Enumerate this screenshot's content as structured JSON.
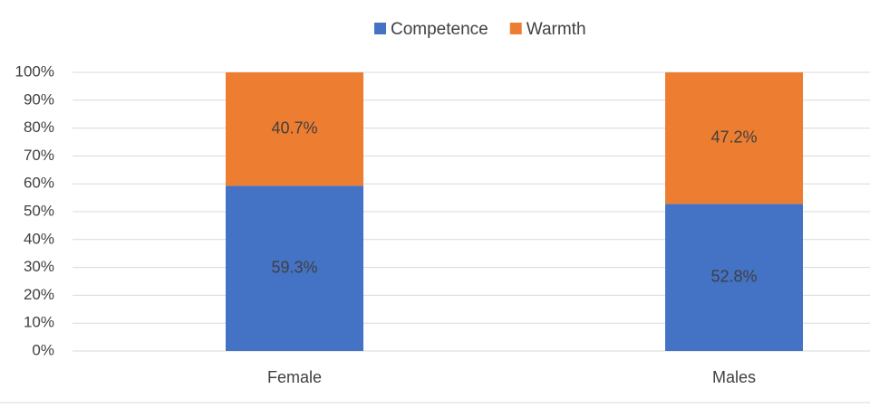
{
  "chart_data": {
    "type": "stacked_bar",
    "categories": [
      "Female",
      "Males"
    ],
    "series": [
      {
        "name": "Competence",
        "color": "#4472c4",
        "values": [
          59.3,
          52.8
        ],
        "value_labels": [
          "59.3%",
          "52.8%"
        ]
      },
      {
        "name": "Warmth",
        "color": "#ed7d31",
        "values": [
          40.7,
          47.2
        ],
        "value_labels": [
          "40.7%",
          "47.2%"
        ]
      }
    ],
    "ylim": [
      0,
      100
    ],
    "yticks": [
      {
        "value": 0,
        "label": "0%"
      },
      {
        "value": 10,
        "label": "10%"
      },
      {
        "value": 20,
        "label": "20%"
      },
      {
        "value": 30,
        "label": "30%"
      },
      {
        "value": 40,
        "label": "40%"
      },
      {
        "value": 50,
        "label": "50%"
      },
      {
        "value": 60,
        "label": "60%"
      },
      {
        "value": 70,
        "label": "70%"
      },
      {
        "value": 80,
        "label": "80%"
      },
      {
        "value": 90,
        "label": "90%"
      },
      {
        "value": 100,
        "label": "100%"
      }
    ],
    "grid": true,
    "legend": "top"
  }
}
